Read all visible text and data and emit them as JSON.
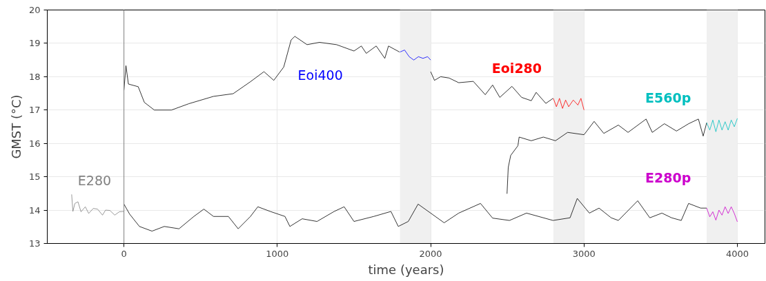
{
  "chart_data": {
    "type": "line",
    "xlabel": "time (years)",
    "ylabel": "GMST (°C)",
    "xlim": [
      -500,
      4180
    ],
    "ylim": [
      13,
      20
    ],
    "xticks": [
      0,
      1000,
      2000,
      3000,
      4000
    ],
    "yticks": [
      13,
      14,
      15,
      16,
      17,
      18,
      19,
      20
    ],
    "grid": true,
    "marker": "none",
    "line_style": "solid",
    "series": [
      {
        "name": "E280",
        "color": "#808080",
        "x": [
          -341,
          -333,
          -320,
          -300,
          -280,
          -252,
          -230,
          -200,
          -172,
          -140,
          -120,
          -92,
          -60,
          -30,
          0
        ],
        "values": [
          14.47,
          13.96,
          14.2,
          14.25,
          13.95,
          14.1,
          13.9,
          14.05,
          14.03,
          13.85,
          14.0,
          13.99,
          13.85,
          13.95,
          13.96
        ]
      },
      {
        "color": "#000000",
        "x": [
          0,
          37,
          101,
          183,
          263,
          359,
          456,
          521,
          584,
          681,
          745,
          825,
          873,
          954,
          1050,
          1082,
          1162,
          1259,
          1371,
          1436,
          1500,
          1629,
          1741,
          1789,
          1854,
          1918,
          2000,
          2088,
          2183,
          2325,
          2404,
          2514,
          2625,
          2798,
          2909,
          2956,
          3035,
          3098,
          3177,
          3224,
          3350,
          3429,
          3508,
          3571,
          3634,
          3682,
          3761,
          3800
        ],
        "values": [
          14.18,
          13.88,
          13.51,
          13.37,
          13.51,
          13.44,
          13.81,
          14.03,
          13.81,
          13.81,
          13.44,
          13.81,
          14.1,
          13.96,
          13.81,
          13.51,
          13.74,
          13.66,
          13.96,
          14.1,
          13.66,
          13.81,
          13.96,
          13.51,
          13.66,
          14.18,
          13.91,
          13.62,
          13.91,
          14.2,
          13.76,
          13.69,
          13.91,
          13.69,
          13.77,
          14.35,
          13.91,
          14.06,
          13.77,
          13.69,
          14.28,
          13.77,
          13.91,
          13.77,
          13.69,
          14.2,
          14.06,
          14.06
        ]
      },
      {
        "color": "#000000",
        "x": [
          0,
          13,
          29,
          93,
          133,
          198,
          310,
          423,
          584,
          712,
          825,
          913,
          977,
          1042,
          1090,
          1114,
          1194,
          1275,
          1387,
          1500,
          1548,
          1580,
          1645,
          1701,
          1725,
          1797
        ],
        "values": [
          17.6,
          18.33,
          17.78,
          17.7,
          17.23,
          17.0,
          17.0,
          17.19,
          17.41,
          17.49,
          17.85,
          18.15,
          17.89,
          18.29,
          19.1,
          19.21,
          18.96,
          19.03,
          18.96,
          18.77,
          18.92,
          18.7,
          18.92,
          18.55,
          18.92,
          18.74
        ]
      },
      {
        "name": "Eoi400",
        "color": "#0000ff",
        "x": [
          1800,
          1830,
          1860,
          1890,
          1920,
          1950,
          1980,
          2000
        ],
        "values": [
          18.74,
          18.8,
          18.6,
          18.5,
          18.6,
          18.55,
          18.6,
          18.5
        ]
      },
      {
        "color": "#000000",
        "x": [
          2000,
          2025,
          2065,
          2120,
          2183,
          2278,
          2356,
          2404,
          2451,
          2530,
          2593,
          2656,
          2688,
          2751,
          2798
        ],
        "values": [
          18.15,
          17.89,
          18.0,
          17.96,
          17.82,
          17.86,
          17.46,
          17.75,
          17.38,
          17.71,
          17.38,
          17.28,
          17.53,
          17.2,
          17.35
        ]
      },
      {
        "name": "Eoi280",
        "color": "#ff0000",
        "x": [
          2800,
          2820,
          2840,
          2860,
          2880,
          2900,
          2930,
          2960,
          2980,
          3000
        ],
        "values": [
          17.35,
          17.1,
          17.35,
          17.05,
          17.3,
          17.1,
          17.3,
          17.15,
          17.35,
          17.0
        ]
      },
      {
        "color": "#000000",
        "x": [
          2498,
          2506,
          2522,
          2569,
          2577,
          2656,
          2735,
          2814,
          2893,
          3000,
          3066,
          3129,
          3224,
          3287,
          3405,
          3445,
          3524,
          3603,
          3682,
          3746,
          3777,
          3800
        ],
        "values": [
          14.49,
          15.28,
          15.64,
          15.93,
          16.19,
          16.08,
          16.19,
          16.08,
          16.33,
          16.26,
          16.66,
          16.3,
          16.55,
          16.33,
          16.73,
          16.33,
          16.59,
          16.37,
          16.59,
          16.73,
          16.22,
          16.62
        ]
      },
      {
        "name": "E560p",
        "color": "#00bfbf",
        "x": [
          3800,
          3820,
          3840,
          3860,
          3880,
          3900,
          3920,
          3940,
          3960,
          3980,
          4000
        ],
        "values": [
          16.62,
          16.4,
          16.7,
          16.35,
          16.7,
          16.4,
          16.65,
          16.4,
          16.7,
          16.5,
          16.75
        ]
      },
      {
        "name": "E280p",
        "color": "#cc00cc",
        "x": [
          3800,
          3820,
          3840,
          3860,
          3880,
          3900,
          3920,
          3940,
          3960,
          3980,
          4000
        ],
        "values": [
          14.06,
          13.8,
          13.95,
          13.7,
          14.0,
          13.85,
          14.1,
          13.9,
          14.1,
          13.9,
          13.65
        ]
      }
    ],
    "ref_lines": [
      {
        "axis": "x",
        "value": 0,
        "color": "#808080"
      }
    ],
    "bands": [
      {
        "axis": "x",
        "from": 1800,
        "to": 2000,
        "color": "#f0f0f0"
      },
      {
        "axis": "x",
        "from": 2800,
        "to": 3000,
        "color": "#f0f0f0"
      },
      {
        "axis": "x",
        "from": 3800,
        "to": 4000,
        "color": "#f0f0f0"
      }
    ]
  }
}
